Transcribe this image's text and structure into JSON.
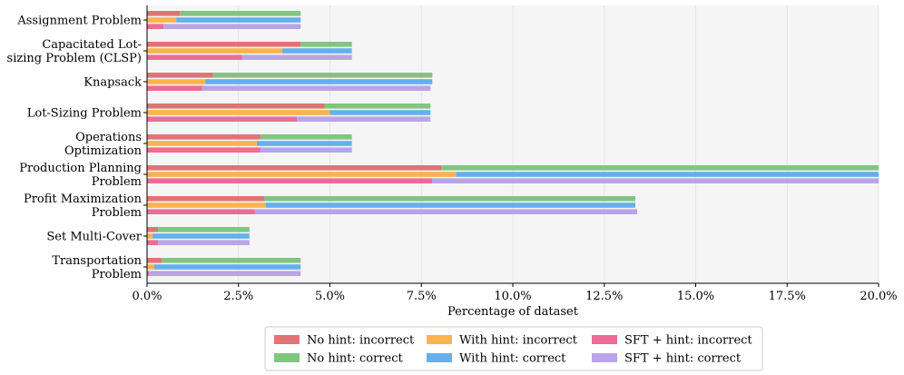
{
  "chart_data": {
    "type": "bar",
    "orientation": "horizontal",
    "stacked": true,
    "title": "",
    "xlabel": "Percentage of dataset",
    "ylabel": "",
    "xlim": [
      0,
      20
    ],
    "xticks": [
      0,
      2.5,
      5,
      7.5,
      10,
      12.5,
      15,
      17.5,
      20
    ],
    "xtick_labels": [
      "0.0%",
      "2.5%",
      "5.0%",
      "7.5%",
      "10.0%",
      "12.5%",
      "15.0%",
      "17.5%",
      "20.0%"
    ],
    "grid": true,
    "categories": [
      [
        "Assignment Problem"
      ],
      [
        "Capacitated Lot-",
        "sizing Problem (CLSP)"
      ],
      [
        "Knapsack"
      ],
      [
        "Lot-Sizing Problem"
      ],
      [
        "Operations",
        "Optimization"
      ],
      [
        "Production Planning",
        "Problem"
      ],
      [
        "Profit Maximization",
        "Problem"
      ],
      [
        "Set Multi-Cover"
      ],
      [
        "Transportation",
        "Problem"
      ]
    ],
    "groups": [
      {
        "name": "No hint",
        "segments": [
          {
            "name": "No hint: incorrect",
            "color": "#e07474",
            "values": [
              0.9,
              4.2,
              1.8,
              4.85,
              3.1,
              8.05,
              3.2,
              0.3,
              0.4
            ]
          },
          {
            "name": "No hint: correct",
            "color": "#80c680",
            "values": [
              3.3,
              1.4,
              6.0,
              2.9,
              2.5,
              11.95,
              10.15,
              2.5,
              3.8
            ]
          }
        ]
      },
      {
        "name": "With hint",
        "segments": [
          {
            "name": "With hint: incorrect",
            "color": "#fbb34d",
            "values": [
              0.8,
              3.7,
              1.6,
              5.0,
              3.0,
              8.45,
              3.25,
              0.15,
              0.2
            ]
          },
          {
            "name": "With hint: correct",
            "color": "#64b0ec",
            "values": [
              3.4,
              1.9,
              6.2,
              2.75,
              2.6,
              11.55,
              10.1,
              2.65,
              4.0
            ]
          }
        ]
      },
      {
        "name": "SFT + hint",
        "segments": [
          {
            "name": "SFT + hint: incorrect",
            "color": "#ec6c94",
            "values": [
              0.45,
              2.6,
              1.5,
              4.1,
              3.1,
              7.8,
              2.95,
              0.3,
              0.05
            ]
          },
          {
            "name": "SFT + hint: correct",
            "color": "#b8a4e6",
            "values": [
              3.75,
              3.0,
              6.25,
              3.65,
              2.5,
              12.2,
              10.45,
              2.5,
              4.15
            ]
          }
        ]
      }
    ],
    "legend": {
      "placement": "bottom-center",
      "columns": [
        [
          "No hint: incorrect",
          "No hint: correct"
        ],
        [
          "With hint: incorrect",
          "With hint: correct"
        ],
        [
          "SFT + hint: incorrect",
          "SFT + hint: correct"
        ]
      ]
    }
  }
}
